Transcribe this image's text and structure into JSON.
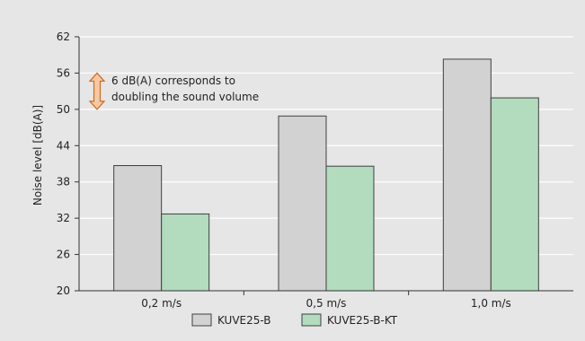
{
  "chart_data": {
    "type": "bar",
    "categories": [
      "0,2 m/s",
      "0,5 m/s",
      "1,0 m/s"
    ],
    "series": [
      {
        "name": "KUVE25-B",
        "values": [
          40.7,
          48.9,
          58.3
        ]
      },
      {
        "name": "KUVE25-B-KT",
        "values": [
          32.7,
          40.6,
          51.9
        ]
      }
    ],
    "xlabel": "",
    "ylabel": "Noise level [dB(A)]",
    "ylim": [
      20,
      62
    ],
    "yticks": [
      "20",
      "26",
      "32",
      "38",
      "44",
      "50",
      "56",
      "62"
    ],
    "grid": "horizontal",
    "legend_position": "bottom",
    "annotation": {
      "lines": [
        "6 dB(A) corresponds to",
        "doubling the sound volume"
      ],
      "range": [
        50,
        56
      ]
    },
    "colors": {
      "background": "#e6e6e6",
      "plot_background": "#e6e6e6",
      "series1": "#d2d2d2",
      "series2": "#b2dcbd",
      "bar_stroke": "#404040",
      "grid": "#ffffff",
      "arrow_fill": "#f6c9a4",
      "arrow_stroke": "#d2691e"
    }
  }
}
